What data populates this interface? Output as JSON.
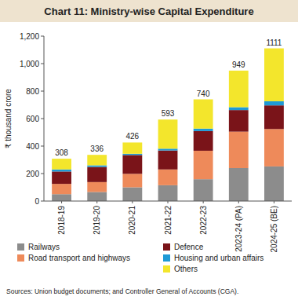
{
  "chart_data": {
    "type": "bar",
    "stacked": true,
    "title": "Chart 11: Ministry-wise Capital Expenditure",
    "y_label": "₹ thousand crore",
    "note": "Sources: Union budget documents; and Controller General of Accounts (CGA).",
    "categories": [
      "2018-19",
      "2019-20",
      "2020-21",
      "2021-22",
      "2022-23",
      "2023-24 (PA)",
      "2024-25 (BE)"
    ],
    "series": [
      {
        "name": "Railways",
        "color": "#8c8c8c",
        "values": [
          50,
          66,
          100,
          115,
          159,
          240,
          252
        ]
      },
      {
        "name": "Road transport and highways",
        "color": "#ee8a5a",
        "values": [
          75,
          72,
          98,
          115,
          207,
          265,
          272
        ]
      },
      {
        "name": "Defence",
        "color": "#7a1419",
        "values": [
          90,
          110,
          137,
          138,
          143,
          157,
          172
        ]
      },
      {
        "name": "Housing and urban affairs",
        "color": "#1f9ad6",
        "values": [
          15,
          12,
          9,
          13,
          18,
          21,
          30
        ]
      },
      {
        "name": "Others",
        "color": "#f3e62c",
        "values": [
          78,
          76,
          82,
          212,
          213,
          266,
          385
        ]
      }
    ],
    "totals": [
      308,
      336,
      426,
      593,
      740,
      949,
      1111
    ],
    "ylim": [
      0,
      1200
    ],
    "yticks": [
      0,
      200,
      400,
      600,
      800,
      {
        "value": 1000,
        "label": "1,000"
      },
      {
        "value": 1200,
        "label": "1,200"
      }
    ],
    "grid": false,
    "legend": "bottom"
  }
}
